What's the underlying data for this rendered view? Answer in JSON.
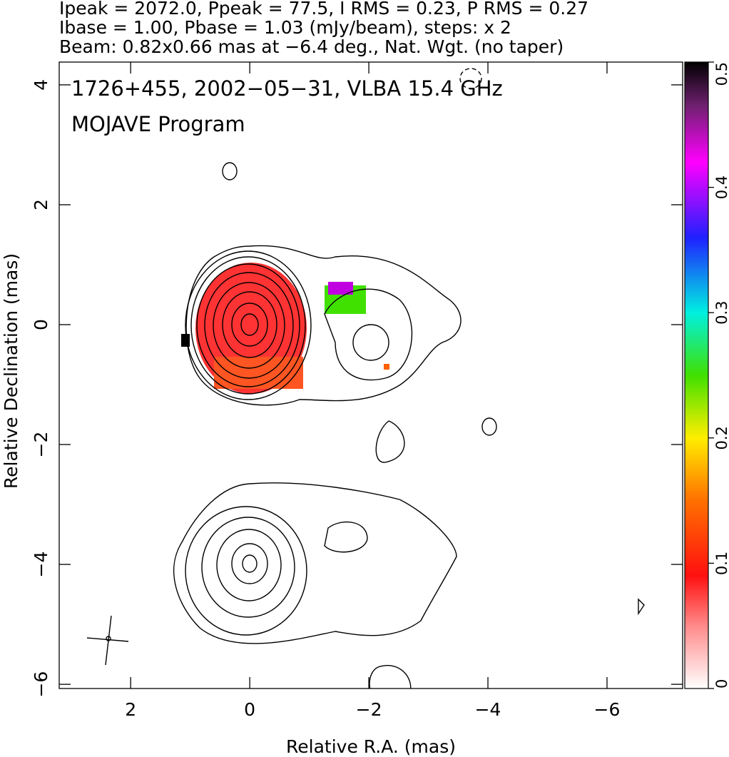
{
  "chart_data": {
    "type": "contour",
    "header": [
      "Ipeak = 2072.0, Ppeak = 77.5, I RMS = 0.23, P RMS = 0.27",
      "Ibase = 1.00, Pbase = 1.03 (mJy/beam), steps: x 2",
      "Beam: 0.82x0.66 mas at −6.4 deg., Nat. Wgt. (no taper)"
    ],
    "title": "1726+455, 2002−05−31, VLBA 15.4 GHz",
    "subtitle": "MOJAVE Program",
    "xlabel": "Relative R.A. (mas)",
    "ylabel": "Relative Declination (mas)",
    "xlim": [
      3.2,
      -7.27
    ],
    "ylim": [
      -6.07,
      4.38
    ],
    "xticks": [
      2,
      0,
      {
        "value": -2,
        "label": "−2"
      },
      {
        "value": -4,
        "label": "−4"
      },
      {
        "value": -6,
        "label": "−6"
      }
    ],
    "yticks": [
      {
        "value": -6,
        "label": "−6"
      },
      {
        "value": -4,
        "label": "−4"
      },
      {
        "value": -2,
        "label": "−2"
      },
      0,
      2,
      4
    ],
    "colorbar_lim": [
      0,
      0.5
    ],
    "colorbar_ticks": [
      0,
      0.1,
      0.2,
      0.3,
      0.4,
      0.5
    ]
  }
}
